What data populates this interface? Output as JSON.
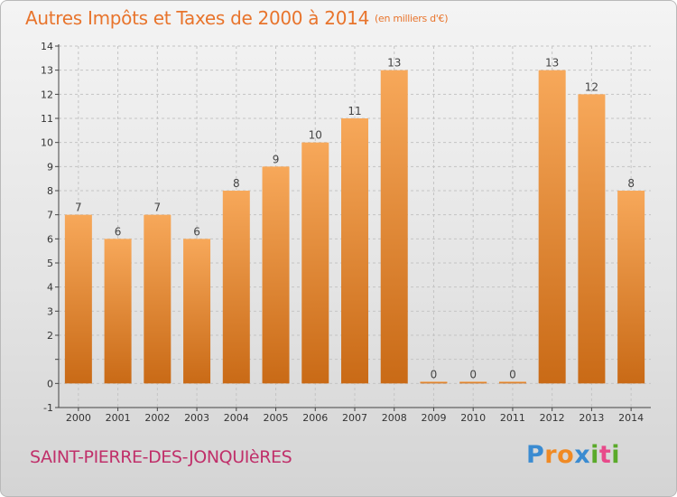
{
  "header": {
    "title": "Autres Impôts et Taxes de 2000 à 2014",
    "unit": "(en milliers d'€)"
  },
  "footer": {
    "commune": "SAINT-PIERRE-DES-JONQUIèRES",
    "brand_letters": [
      "P",
      "r",
      "o",
      "x",
      "i",
      "t",
      "i"
    ],
    "brand_colors": [
      "#3a8bd1",
      "#f08a24",
      "#f08a24",
      "#3a8bd1",
      "#5aaa2a",
      "#e84a8a",
      "#5aaa2a"
    ]
  },
  "chart_data": {
    "type": "bar",
    "categories": [
      "2000",
      "2001",
      "2002",
      "2003",
      "2004",
      "2005",
      "2006",
      "2007",
      "2008",
      "2009",
      "2010",
      "2011",
      "2012",
      "2013",
      "2014"
    ],
    "values": [
      7,
      6,
      7,
      6,
      8,
      9,
      10,
      11,
      13,
      0,
      0,
      0,
      13,
      12,
      8
    ],
    "data_labels": [
      "7",
      "6",
      "7",
      "6",
      "8",
      "9",
      "10",
      "11",
      "13",
      "0",
      "0",
      "0",
      "13",
      "12",
      "8"
    ],
    "ylim": [
      -1,
      14
    ],
    "yticks": [
      -1,
      0,
      1,
      2,
      3,
      4,
      5,
      6,
      7,
      8,
      9,
      10,
      11,
      12,
      13,
      14
    ],
    "ytick_labels": [
      "-1",
      "0",
      "",
      "2",
      "3",
      "4",
      "5",
      "6",
      "7",
      "8",
      "9",
      "10",
      "11",
      "12",
      "13",
      "14"
    ],
    "grid": true,
    "colors": {
      "bar_light": "#f7a85a",
      "bar_dark": "#c96a16",
      "axis": "#444444",
      "grid": "#c4c4c4"
    }
  }
}
